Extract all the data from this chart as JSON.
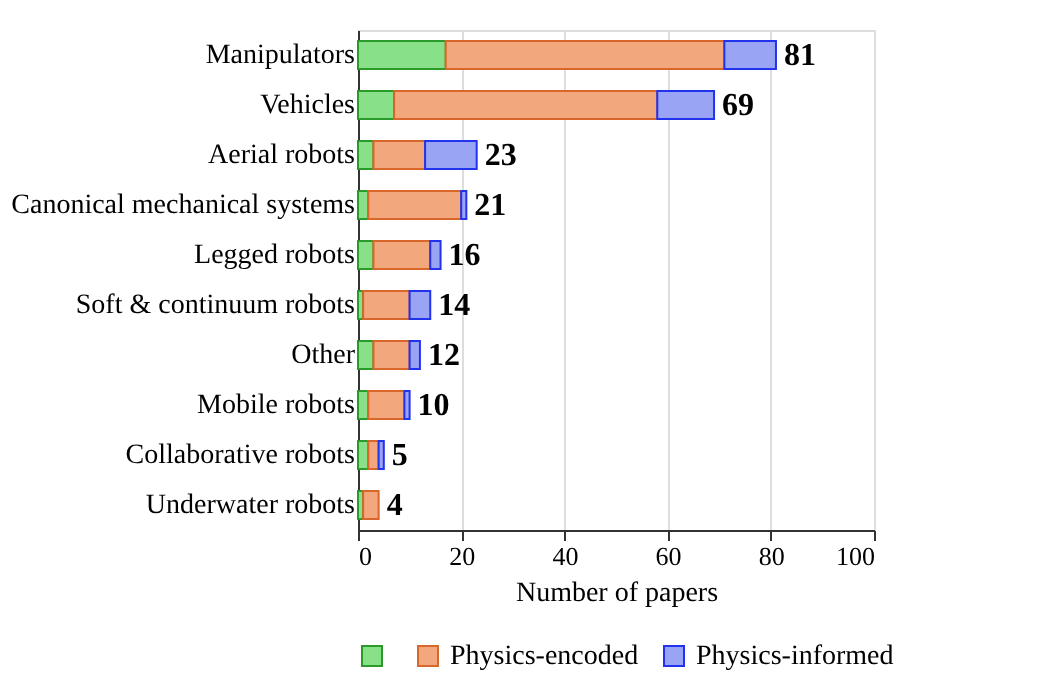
{
  "chart_data": {
    "type": "bar",
    "orientation": "horizontal",
    "stacked": true,
    "categories": [
      "Manipulators",
      "Vehicles",
      "Aerial robots",
      "Canonical mechanical systems",
      "Legged robots",
      "Soft & continuum robots",
      "Other",
      "Mobile robots",
      "Collaborative robots",
      "Underwater robots"
    ],
    "series": [
      {
        "color": "#88e088",
        "values": [
          17,
          7,
          3,
          2,
          3,
          1,
          3,
          2,
          2,
          1
        ]
      },
      {
        "name": "Physics-encoded",
        "color": "#f2a87c",
        "values": [
          54,
          51,
          10,
          18,
          11,
          9,
          7,
          7,
          2,
          3
        ]
      },
      {
        "name": "Physics-informed",
        "color": "#99a4f5",
        "values": [
          10,
          11,
          10,
          1,
          2,
          4,
          2,
          1,
          1,
          0
        ]
      }
    ],
    "totals": [
      "81",
      "69",
      "23",
      "21",
      "16",
      "14",
      "12",
      "10",
      "5",
      "4"
    ],
    "xlabel": "Number of papers",
    "xlim": [
      0,
      100
    ],
    "xticks": [
      0,
      20,
      40,
      60,
      80,
      100
    ],
    "grid": "x",
    "legend": "bottom"
  }
}
